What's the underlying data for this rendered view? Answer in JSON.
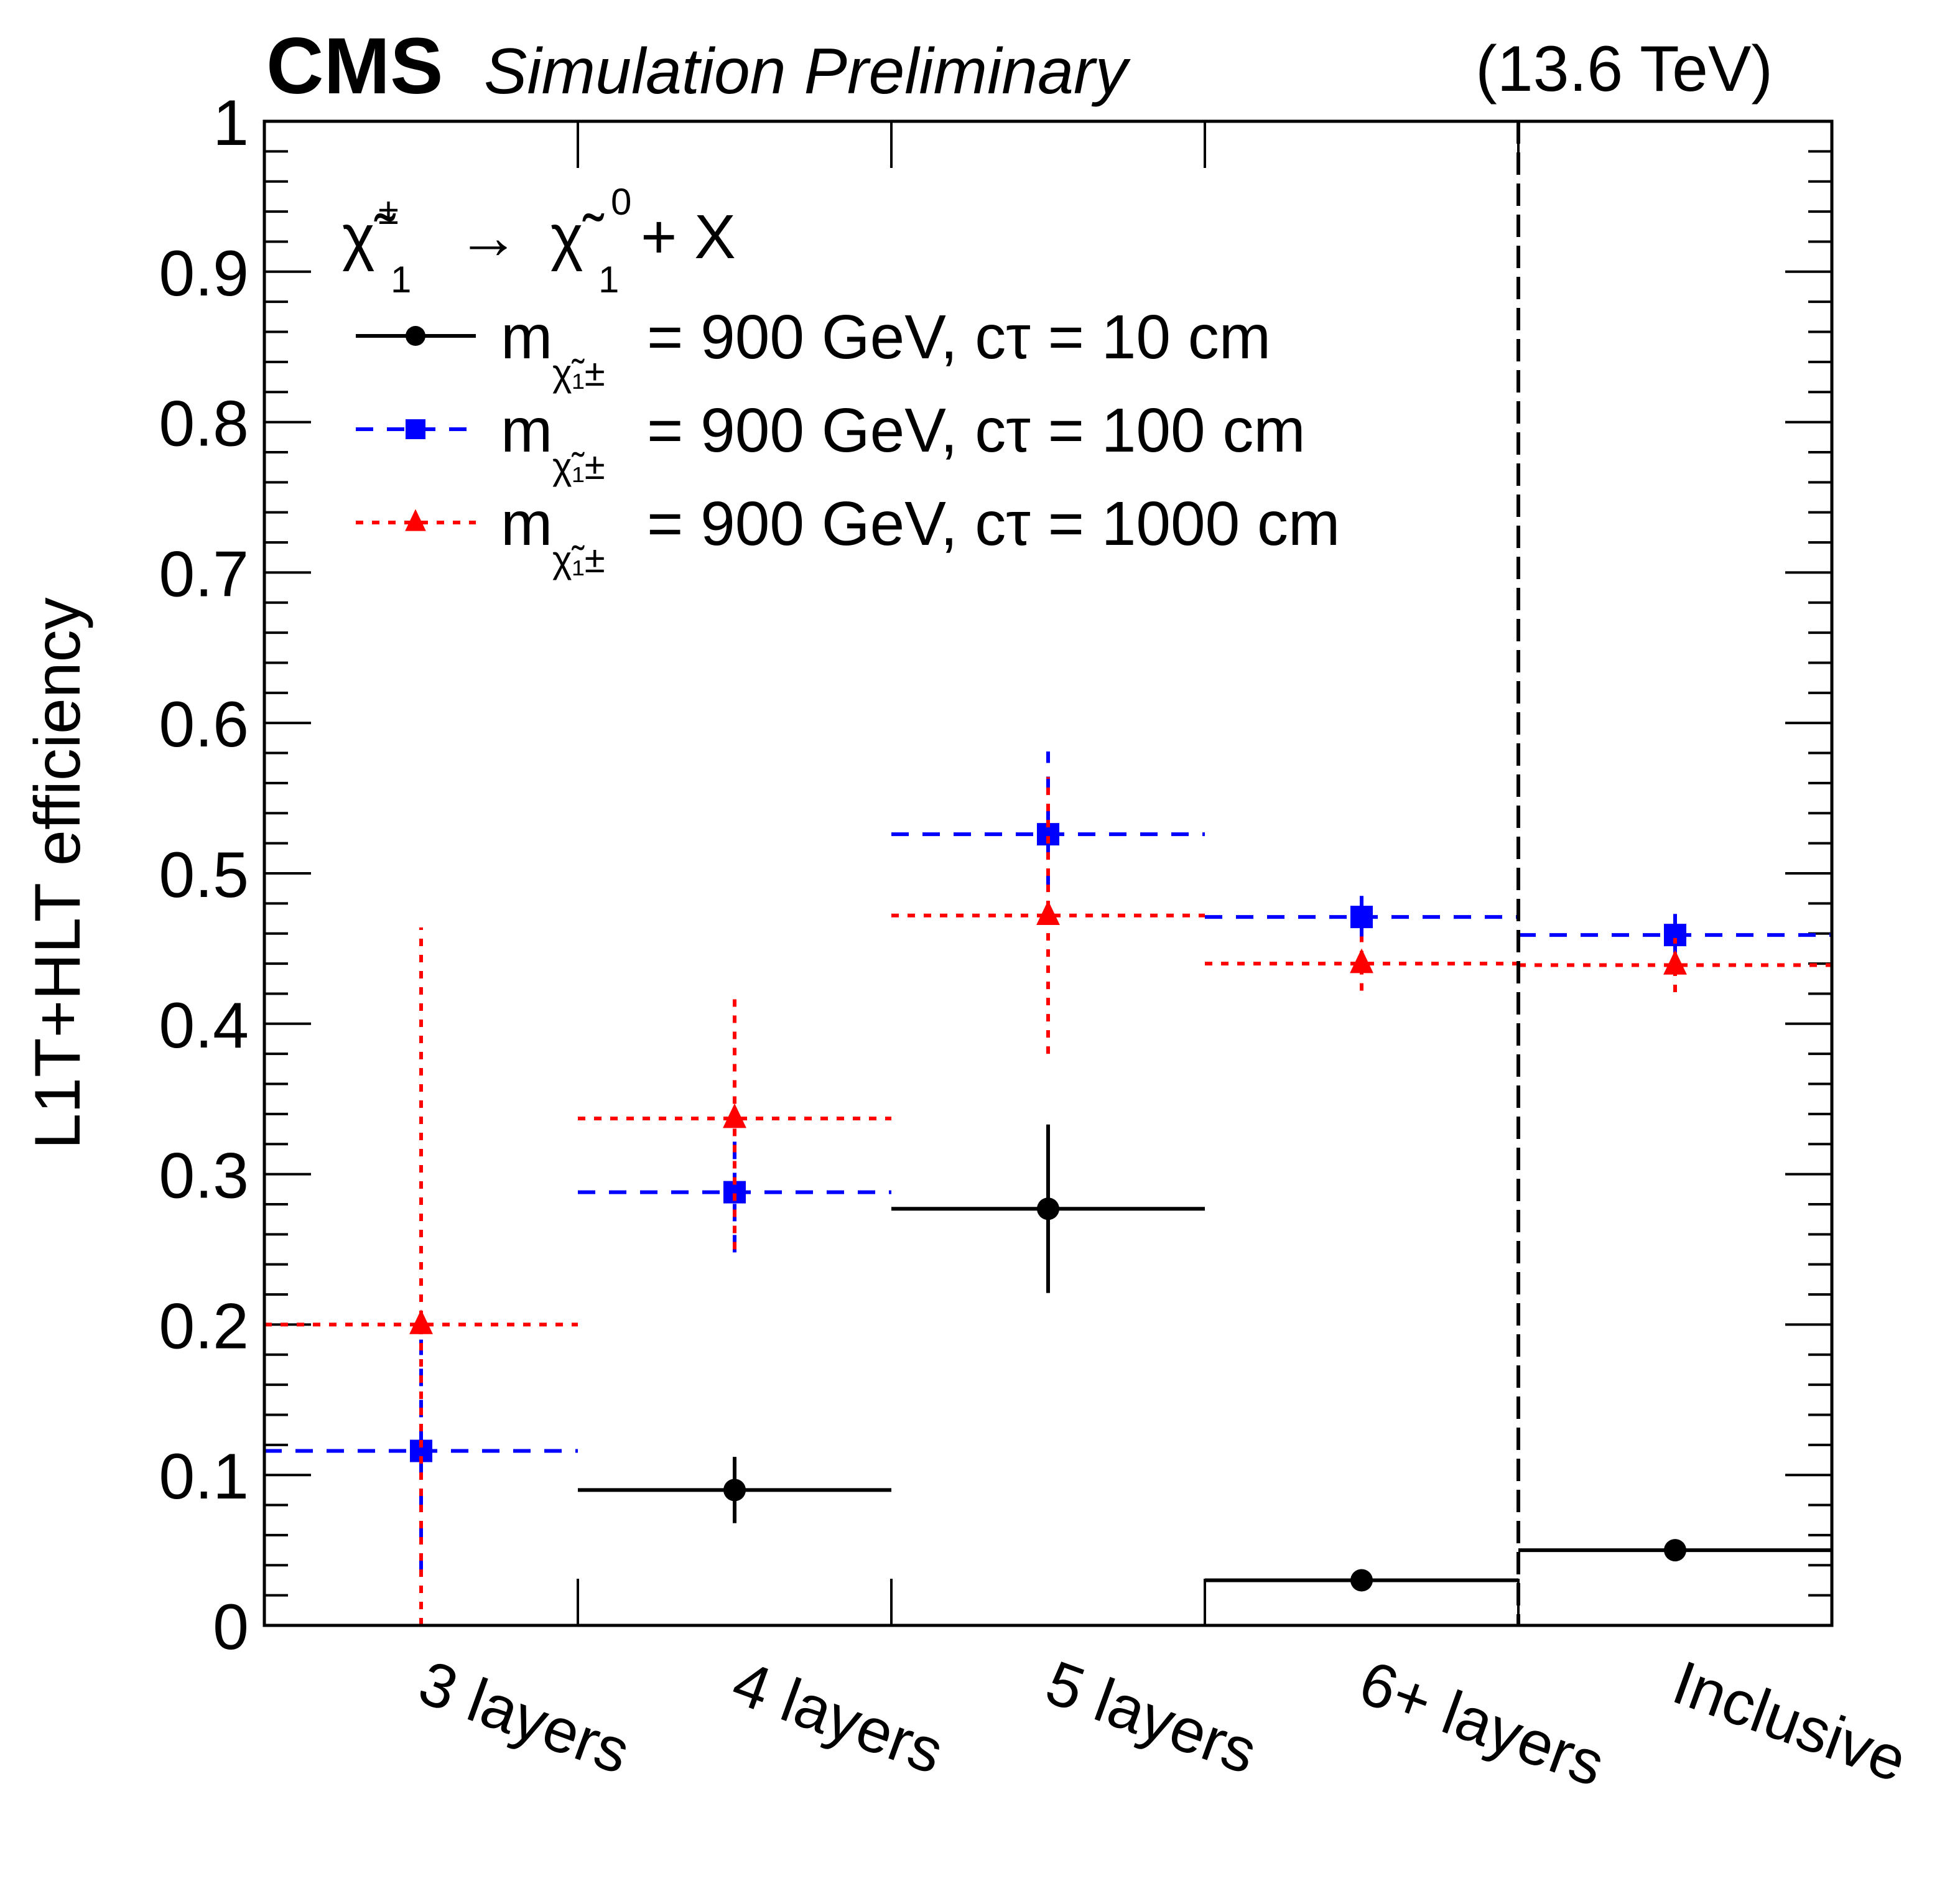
{
  "chart_data": {
    "type": "scatter",
    "subtype": "binned points with error bars",
    "header": {
      "experiment": "CMS",
      "status": "Simulation Preliminary",
      "energy": "(13.6 TeV)"
    },
    "title": "",
    "xlabel": "",
    "ylabel": "L1T+HLT efficiency",
    "ylim": [
      0,
      1
    ],
    "yticks": [
      0,
      0.1,
      0.2,
      0.3,
      0.4,
      0.5,
      0.6,
      0.7,
      0.8,
      0.9,
      1
    ],
    "ytick_labels": [
      "0",
      "0.1",
      "0.2",
      "0.3",
      "0.4",
      "0.5",
      "0.6",
      "0.7",
      "0.8",
      "0.9",
      "1"
    ],
    "y_minor_step": 0.02,
    "categories": [
      "3 layers",
      "4 layers",
      "5 layers",
      "6+ layers",
      "Inclusive"
    ],
    "separator_after_category": "6+ layers",
    "grid": false,
    "legend": {
      "placement": "top-left",
      "header": "χ̃₁± → χ̃₁⁰ + X",
      "header_parts": {
        "chi": "χ̃",
        "sub": "1",
        "sup1": "±",
        "arrow": "→",
        "sup2": "0",
        "rest": "+ X"
      }
    },
    "series": [
      {
        "name": "m(χ̃₁±) = 900 GeV, cτ = 10 cm",
        "label_prefix": "m",
        "label_sub": "χ̃₁±",
        "label_rest": "= 900 GeV, cτ = 10 cm",
        "color": "#000000",
        "marker": "circle",
        "line_style": "solid",
        "values": [
          null,
          0.09,
          0.277,
          0.03,
          0.05
        ],
        "err_low": [
          null,
          0.068,
          0.221,
          0.028,
          0.048
        ],
        "err_high": [
          null,
          0.112,
          0.333,
          0.032,
          0.052
        ]
      },
      {
        "name": "m(χ̃₁±) = 900 GeV, cτ = 100 cm",
        "label_prefix": "m",
        "label_sub": "χ̃₁±",
        "label_rest": "= 900 GeV, cτ = 100 cm",
        "color": "#0000ff",
        "marker": "square",
        "line_style": "dashed",
        "values": [
          0.116,
          0.288,
          0.526,
          0.471,
          0.459
        ],
        "err_low": [
          0.035,
          0.248,
          0.47,
          0.457,
          0.445
        ],
        "err_high": [
          0.19,
          0.333,
          0.581,
          0.485,
          0.473
        ]
      },
      {
        "name": "m(χ̃₁±) = 900 GeV, cτ = 1000 cm",
        "label_prefix": "m",
        "label_sub": "χ̃₁±",
        "label_rest": "= 900 GeV, cτ = 1000 cm",
        "color": "#ff0000",
        "marker": "triangle",
        "line_style": "dotted",
        "values": [
          0.2,
          0.337,
          0.472,
          0.44,
          0.439
        ],
        "err_low": [
          0.0,
          0.25,
          0.38,
          0.422,
          0.421
        ],
        "err_high": [
          0.464,
          0.422,
          0.564,
          0.458,
          0.457
        ]
      }
    ]
  }
}
